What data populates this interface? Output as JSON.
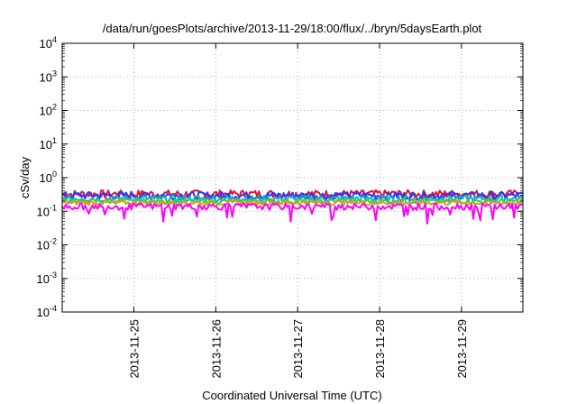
{
  "chart_data": {
    "type": "line",
    "title": "/data/run/goesPlots/archive/2013-11-29/18:00/flux/../bryn/5daysEarth.plot",
    "xlabel": "Coordinated Universal Time (UTC)",
    "ylabel": "cSv/day",
    "yscale": "log",
    "ylim": [
      0.0001,
      10000
    ],
    "y_ticks": [
      {
        "value": 0.0001,
        "base": "10",
        "exp": "-4"
      },
      {
        "value": 0.001,
        "base": "10",
        "exp": "-3"
      },
      {
        "value": 0.01,
        "base": "10",
        "exp": "-2"
      },
      {
        "value": 0.1,
        "base": "10",
        "exp": "-1"
      },
      {
        "value": 1,
        "base": "10",
        "exp": "0"
      },
      {
        "value": 10,
        "base": "10",
        "exp": "1"
      },
      {
        "value": 100,
        "base": "10",
        "exp": "2"
      },
      {
        "value": 1000,
        "base": "10",
        "exp": "3"
      },
      {
        "value": 10000,
        "base": "10",
        "exp": "4"
      }
    ],
    "xlim": [
      "2013-11-24T03:00",
      "2013-11-29T18:00"
    ],
    "x_ticks": [
      "2013-11-25",
      "2013-11-26",
      "2013-11-27",
      "2013-11-28",
      "2013-11-29"
    ],
    "grid": true,
    "series": [
      {
        "color": "#e8112d",
        "level": 0.33,
        "spread": 0.26
      },
      {
        "color": "#3232ff",
        "level": 0.3,
        "spread": 0.24
      },
      {
        "color": "#00b8b8",
        "level": 0.24,
        "spread": 0.2
      },
      {
        "color": "#33cc66",
        "level": 0.2,
        "spread": 0.16
      },
      {
        "color": "#d4a017",
        "level": 0.18,
        "spread": 0.15
      },
      {
        "color": "#ff00ff",
        "level": 0.14,
        "spread": 0.2
      }
    ]
  }
}
